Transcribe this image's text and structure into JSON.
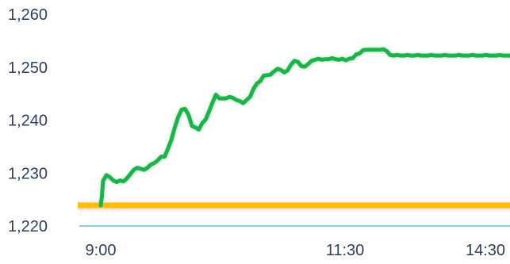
{
  "chart_data": {
    "type": "line",
    "title": "",
    "xlabel": "",
    "ylabel": "",
    "ylim": [
      1220,
      1260
    ],
    "y_ticks": [
      "1,260",
      "1,250",
      "1,240",
      "1,230",
      "1,220"
    ],
    "y_tick_values": [
      1260,
      1250,
      1240,
      1230,
      1220
    ],
    "x_ticks": [
      "9:00",
      "11:30",
      "14:30"
    ],
    "x_tick_values": [
      540,
      690,
      870
    ],
    "xlim": [
      532,
      900
    ],
    "grid": false,
    "legend": "none",
    "reference_level": 1223.9,
    "series": [
      {
        "color": "#1db34c",
        "x": [
          540,
          541,
          542,
          545,
          548,
          551,
          554,
          557,
          560,
          563,
          566,
          569,
          572,
          575,
          578,
          581,
          584,
          587,
          590,
          593,
          596,
          599,
          602,
          605,
          608,
          611,
          614,
          617,
          620,
          623,
          626,
          629,
          632,
          635,
          638,
          641,
          644,
          647,
          650,
          653,
          656,
          659,
          662,
          665,
          668,
          671,
          674,
          677,
          680,
          683,
          686,
          689,
          692,
          695,
          698,
          701,
          704,
          707,
          710,
          713,
          716,
          719,
          722,
          725,
          728,
          731,
          734,
          737,
          740,
          743,
          746,
          749,
          752,
          755,
          758,
          761,
          764,
          767,
          770,
          773,
          776,
          779,
          782,
          785,
          788,
          791,
          794,
          797,
          800,
          803,
          806,
          809,
          812,
          815,
          818,
          821,
          824,
          827,
          830,
          833,
          836,
          839,
          842,
          845,
          848,
          851,
          854,
          857,
          860,
          863,
          866,
          869,
          872,
          875,
          878,
          881,
          884,
          887,
          890,
          893,
          896,
          899
        ],
        "values": [
          1223.9,
          1225.5,
          1228.5,
          1229.6,
          1229.2,
          1228.6,
          1228.3,
          1228.6,
          1228.4,
          1229.0,
          1229.8,
          1230.6,
          1231.0,
          1230.8,
          1230.6,
          1231.0,
          1231.6,
          1231.9,
          1232.4,
          1233.1,
          1233.1,
          1234.6,
          1236.3,
          1238.6,
          1240.6,
          1242.0,
          1242.1,
          1241.0,
          1238.9,
          1238.6,
          1238.2,
          1239.4,
          1240.1,
          1241.6,
          1243.3,
          1244.8,
          1244.1,
          1244.1,
          1244.1,
          1244.4,
          1244.2,
          1243.8,
          1243.6,
          1243.2,
          1243.8,
          1244.4,
          1245.9,
          1246.9,
          1247.4,
          1248.4,
          1248.5,
          1248.6,
          1249.2,
          1249.7,
          1249.5,
          1249.0,
          1249.4,
          1250.5,
          1251.2,
          1251.0,
          1250.2,
          1250.1,
          1250.6,
          1251.2,
          1251.4,
          1251.6,
          1251.4,
          1251.5,
          1251.5,
          1251.7,
          1251.5,
          1251.4,
          1251.6,
          1251.3,
          1251.6,
          1251.7,
          1252.4,
          1252.6,
          1253.2,
          1253.3,
          1253.3,
          1253.3,
          1253.3,
          1253.3,
          1253.4,
          1253.0,
          1252.3,
          1252.2,
          1252.3,
          1252.2,
          1252.2,
          1252.3,
          1252.2,
          1252.2,
          1252.3,
          1252.2,
          1252.2,
          1252.2,
          1252.3,
          1252.2,
          1252.2,
          1252.2,
          1252.3,
          1252.2,
          1252.2,
          1252.2,
          1252.3,
          1252.2,
          1252.2,
          1252.2,
          1252.3,
          1252.2,
          1252.2,
          1252.2,
          1252.3,
          1252.2,
          1252.2,
          1252.2,
          1252.3,
          1252.2,
          1252.2,
          1252.2
        ]
      }
    ]
  }
}
